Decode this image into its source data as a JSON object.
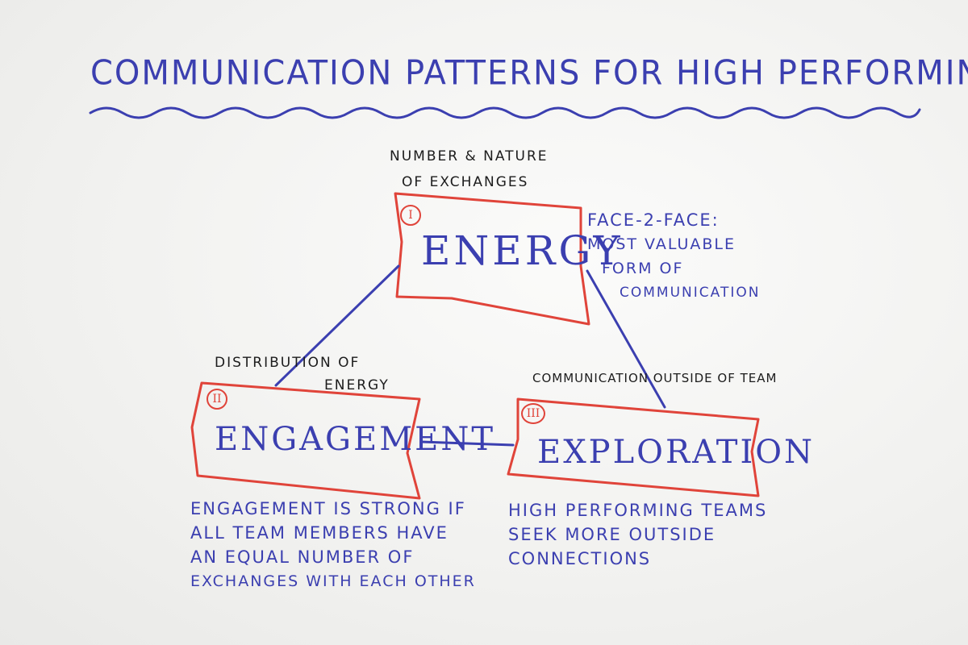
{
  "title": "Communication Patterns for High Performing Teams",
  "nodes": {
    "energy": {
      "label": "Energy",
      "numeral": "I",
      "top_label_line1": "Number & Nature",
      "top_label_line2": "of Exchanges",
      "note_lines": [
        "Face-2-Face:",
        "Most Valuable",
        "Form of",
        "Communication"
      ]
    },
    "engagement": {
      "label": "Engagement",
      "numeral": "II",
      "top_label_line1": "Distribution of",
      "top_label_line2": "Energy",
      "note_lines": [
        "Engagement is Strong if",
        "All Team Members Have",
        "An Equal Number of",
        "Exchanges with Each Other"
      ]
    },
    "exploration": {
      "label": "Exploration",
      "numeral": "III",
      "top_label_line1": "Communication outside of Team",
      "note_lines": [
        "High Performing Teams",
        "Seek More Outside",
        "Connections"
      ]
    }
  },
  "colors": {
    "marker_blue": "#3b3fb0",
    "marker_red": "#e0443a",
    "marker_black": "#1c1c1c"
  }
}
